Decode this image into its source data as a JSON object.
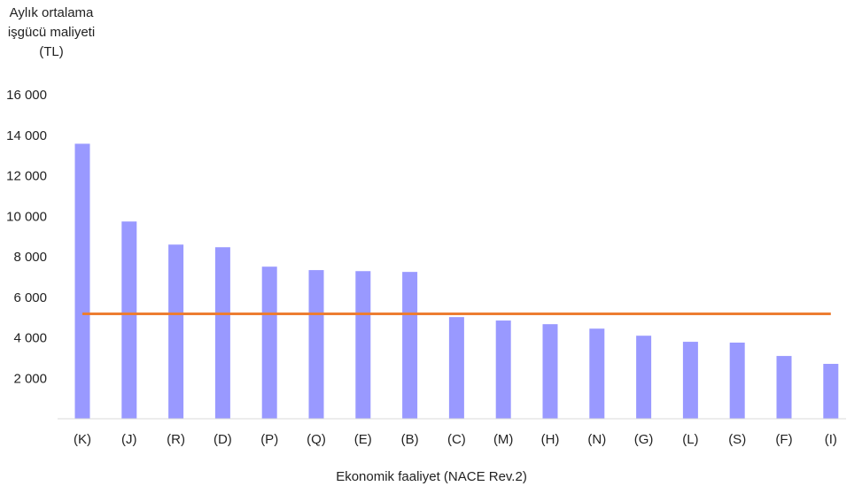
{
  "chart_data": {
    "type": "bar",
    "title": "",
    "ylabel_lines": [
      "Aylık ortalama",
      "işgücü maliyeti",
      "(TL)"
    ],
    "xlabel": "Ekonomik faaliyet (NACE Rev.2)",
    "categories": [
      "(K)",
      "(J)",
      "(R)",
      "(D)",
      "(P)",
      "(Q)",
      "(E)",
      "(B)",
      "(C)",
      "(M)",
      "(H)",
      "(N)",
      "(G)",
      "(L)",
      "(S)",
      "(F)",
      "(I)"
    ],
    "values": [
      13580,
      9740,
      8600,
      8470,
      7510,
      7340,
      7290,
      7250,
      5020,
      4850,
      4670,
      4450,
      4100,
      3800,
      3760,
      3100,
      2710
    ],
    "reference_line": {
      "value": 5180,
      "color": "#ED7D31"
    },
    "bar_color": "#9999FF",
    "ylim": [
      0,
      16000
    ],
    "yticks": [
      2000,
      4000,
      6000,
      8000,
      10000,
      12000,
      14000,
      16000
    ],
    "ytick_labels": [
      "2 000",
      "4 000",
      "6 000",
      "8 000",
      "10 000",
      "12 000",
      "14 000",
      "16 000"
    ],
    "grid": false,
    "legend": "none"
  }
}
